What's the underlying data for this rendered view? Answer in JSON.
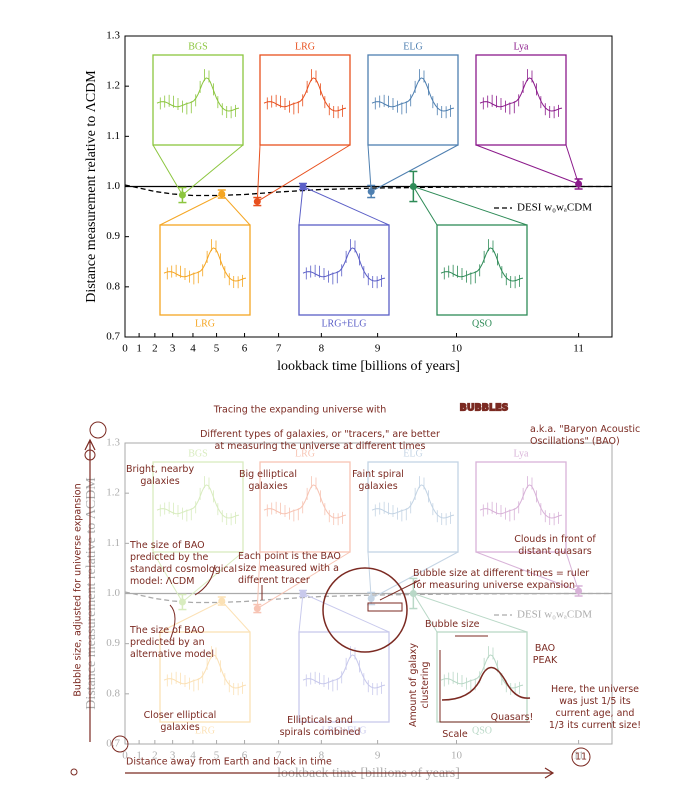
{
  "chart_data": {
    "type": "errorbar",
    "xlabel": "lookback time [billions of years]",
    "ylabel": "Distance measurement relative to ΛCDM",
    "xscale": "redshift",
    "xlim": [
      0,
      11.2
    ],
    "xticks": [
      0,
      1,
      2,
      3,
      4,
      5,
      6,
      7,
      8,
      9,
      10,
      11
    ],
    "ylim": [
      0.7,
      1.3
    ],
    "yticks": [
      0.7,
      0.8,
      0.9,
      {
        "value": 1,
        "label": "1.0"
      },
      1.1,
      1.2,
      1.3
    ],
    "reference_line": 1,
    "series": [
      {
        "name": "BGS",
        "color": "#8cc63f",
        "x": [
          3.5
        ],
        "values": [
          0.983
        ],
        "errors": [
          0.015
        ]
      },
      {
        "name": "LRG",
        "color": "#f5a623",
        "x": [
          5.2
        ],
        "values": [
          0.985
        ],
        "errors": [
          0.008
        ]
      },
      {
        "name": "LRG",
        "color": "#e8501e",
        "x": [
          6.4
        ],
        "values": [
          0.97
        ],
        "errors": [
          0.008
        ]
      },
      {
        "name": "LRG+ELG",
        "color": "#5b5fc7",
        "x": [
          7.6
        ],
        "values": [
          1.0
        ],
        "errors": [
          0.006
        ]
      },
      {
        "name": "ELG",
        "color": "#4e7fb0",
        "x": [
          8.9
        ],
        "values": [
          0.99
        ],
        "errors": [
          0.012
        ]
      },
      {
        "name": "QSO",
        "color": "#2e8b57",
        "x": [
          9.5
        ],
        "values": [
          1.0
        ],
        "errors": [
          0.03
        ]
      },
      {
        "name": "Lya",
        "color": "#8b1a8b",
        "x": [
          11.0
        ],
        "values": [
          1.005
        ],
        "errors": [
          0.01
        ]
      }
    ],
    "model": {
      "name": "DESI w₀wₐCDM",
      "color": "#000000",
      "style": "dashed",
      "x": [
        0,
        1,
        2,
        3,
        4,
        5,
        6,
        7,
        8,
        9,
        10,
        11,
        11.2
      ],
      "values": [
        1.003,
        0.997,
        0.99,
        0.985,
        0.982,
        0.982,
        0.984,
        0.989,
        0.994,
        0.997,
        0.999,
        1.0,
        1.0
      ]
    },
    "legend": "right"
  },
  "annotated": {
    "title_lead": "Tracing the expanding universe with",
    "title_bubbles": "BUBBLES",
    "ylabel": "Bubble size, adjusted for universe expansion",
    "xlabel": "Distance away from Earth and back in time",
    "notes": [
      {
        "lines": [
          "Different types of galaxies, or \"tracers,\" are better",
          "at measuring the universe at different times"
        ]
      },
      {
        "lines": [
          "a.k.a. \"Baryon Acoustic",
          "Oscillations\" (BAO)"
        ]
      },
      {
        "lines": [
          "Bright, nearby",
          "galaxies"
        ]
      },
      {
        "lines": [
          "Big elliptical",
          "galaxies"
        ]
      },
      {
        "lines": [
          "Faint spiral",
          "galaxies"
        ]
      },
      {
        "lines": [
          "The size of BAO",
          "predicted by the",
          "standard cosmological",
          "model: ΛCDM"
        ]
      },
      {
        "lines": [
          "Each point is the BAO",
          "size measured with a",
          "different tracer"
        ]
      },
      {
        "lines": [
          "Bubble size at different times = ruler",
          "for measuring universe expansion"
        ]
      },
      {
        "lines": [
          "Clouds in front of",
          "distant quasars"
        ]
      },
      {
        "lines": [
          "The size of BAO",
          "predicted by an",
          "alternative model"
        ]
      },
      {
        "lines": [
          "Bubble size"
        ]
      },
      {
        "lines": [
          "Amount of galaxy",
          "clustering"
        ]
      },
      {
        "lines": [
          "Scale"
        ]
      },
      {
        "lines": [
          "BAO",
          "PEAK"
        ]
      },
      {
        "lines": [
          "Quasars!"
        ]
      },
      {
        "lines": [
          "Here, the universe",
          "was just 1/5 its",
          "current age, and",
          "1/3 its current size!"
        ]
      },
      {
        "lines": [
          "Closer elliptical",
          "galaxies"
        ]
      },
      {
        "lines": [
          "Ellipticals and",
          "spirals combined"
        ]
      }
    ]
  }
}
